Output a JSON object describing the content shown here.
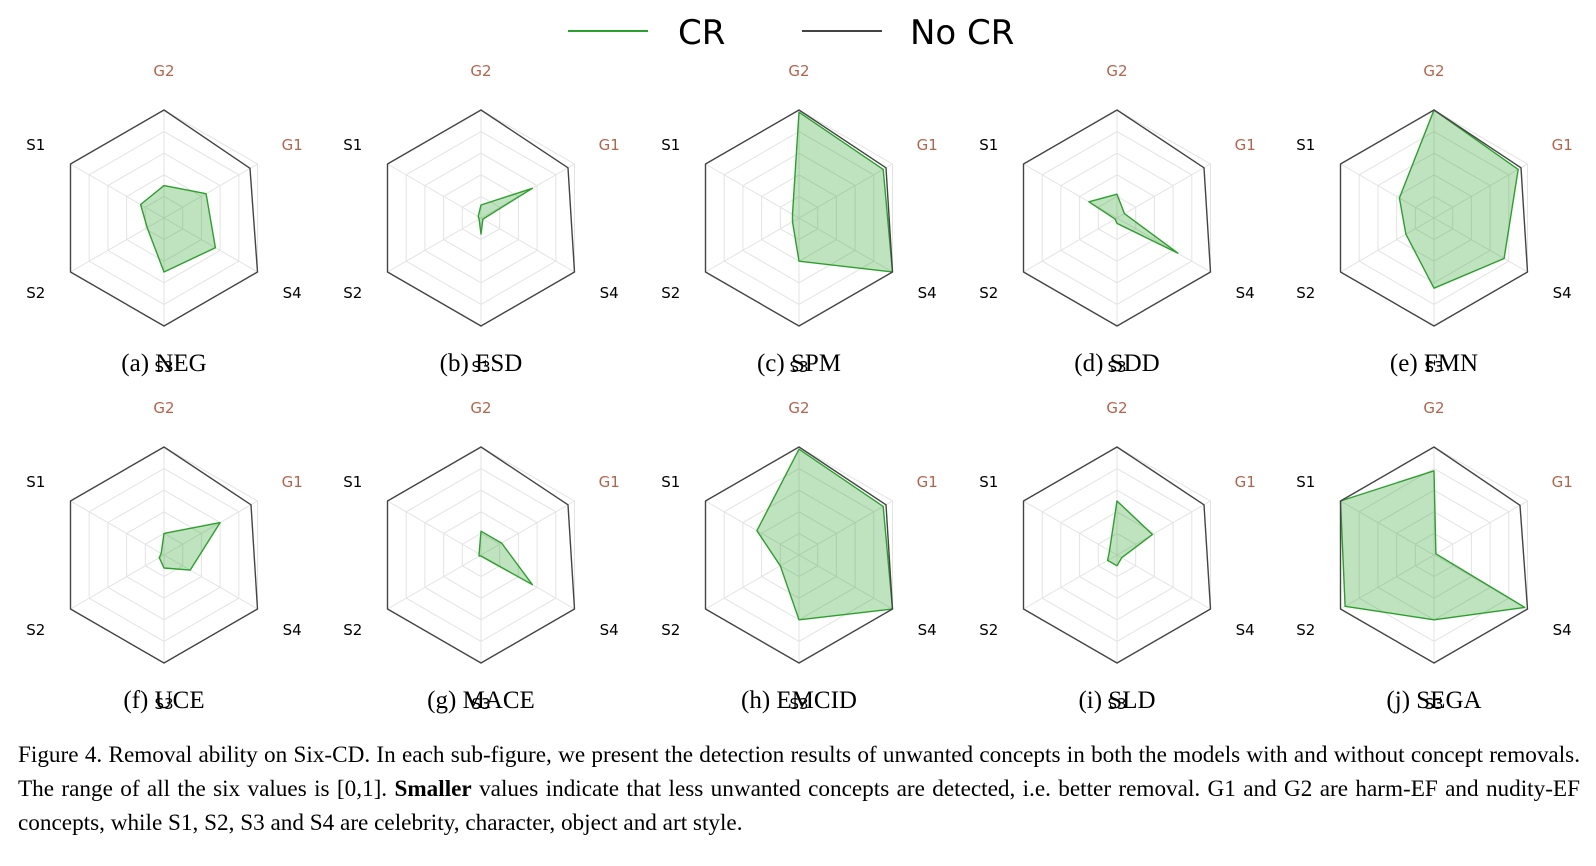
{
  "legend": {
    "cr_label": "CR",
    "nocr_label": "No CR",
    "cr_color": "#2ca02c",
    "nocr_color": "#444444"
  },
  "chart_data": [
    {
      "type": "radar",
      "title": "(a) NEG",
      "axes": [
        "G2",
        "G1",
        "S4",
        "S3",
        "S2",
        "S1"
      ],
      "highlighted_axes": [
        "G2",
        "G1"
      ],
      "range": [
        0,
        1
      ],
      "series": [
        {
          "name": "CR",
          "values": [
            0.3,
            0.45,
            0.55,
            0.5,
            0.18,
            0.25
          ]
        },
        {
          "name": "No CR",
          "values": [
            1,
            0.92,
            1,
            1,
            1,
            1
          ]
        }
      ]
    },
    {
      "type": "radar",
      "title": "(b) ESD",
      "axes": [
        "G2",
        "G1",
        "S4",
        "S3",
        "S2",
        "S1"
      ],
      "highlighted_axes": [
        "G2",
        "G1"
      ],
      "range": [
        0,
        1
      ],
      "series": [
        {
          "name": "CR",
          "values": [
            0.12,
            0.55,
            0.02,
            0.15,
            0.02,
            0.03
          ]
        },
        {
          "name": "No CR",
          "values": [
            1,
            0.93,
            1,
            1,
            1,
            1
          ]
        }
      ]
    },
    {
      "type": "radar",
      "title": "(c) SPM",
      "axes": [
        "G2",
        "G1",
        "S4",
        "S3",
        "S2",
        "S1"
      ],
      "highlighted_axes": [
        "G2",
        "G1"
      ],
      "range": [
        0,
        1
      ],
      "series": [
        {
          "name": "CR",
          "values": [
            0.98,
            0.9,
            1.0,
            0.4,
            0.07,
            0.07
          ]
        },
        {
          "name": "No CR",
          "values": [
            1,
            0.93,
            1,
            1,
            1,
            1
          ]
        }
      ]
    },
    {
      "type": "radar",
      "title": "(d) SDD",
      "axes": [
        "G2",
        "G1",
        "S4",
        "S3",
        "S2",
        "S1"
      ],
      "highlighted_axes": [
        "G2",
        "G1"
      ],
      "range": [
        0,
        1
      ],
      "series": [
        {
          "name": "CR",
          "values": [
            0.22,
            0.08,
            0.65,
            0.05,
            0.02,
            0.3
          ]
        },
        {
          "name": "No CR",
          "values": [
            1,
            0.93,
            1,
            1,
            1,
            1
          ]
        }
      ]
    },
    {
      "type": "radar",
      "title": "(e) FMN",
      "axes": [
        "G2",
        "G1",
        "S4",
        "S3",
        "S2",
        "S1"
      ],
      "highlighted_axes": [
        "G2",
        "G1"
      ],
      "range": [
        0,
        1
      ],
      "series": [
        {
          "name": "CR",
          "values": [
            1.0,
            0.9,
            0.75,
            0.65,
            0.3,
            0.37
          ]
        },
        {
          "name": "No CR",
          "values": [
            1,
            0.93,
            1,
            1,
            1,
            1
          ]
        }
      ]
    },
    {
      "type": "radar",
      "title": "(f) UCE",
      "axes": [
        "G2",
        "G1",
        "S4",
        "S3",
        "S2",
        "S1"
      ],
      "highlighted_axes": [
        "G2",
        "G1"
      ],
      "range": [
        0,
        1
      ],
      "series": [
        {
          "name": "CR",
          "values": [
            0.2,
            0.6,
            0.28,
            0.12,
            0.05,
            0.03
          ]
        },
        {
          "name": "No CR",
          "values": [
            1,
            0.93,
            1,
            1,
            1,
            1
          ]
        }
      ]
    },
    {
      "type": "radar",
      "title": "(g) MACE",
      "axes": [
        "G2",
        "G1",
        "S4",
        "S3",
        "S2",
        "S1"
      ],
      "highlighted_axes": [
        "G2",
        "G1"
      ],
      "range": [
        0,
        1
      ],
      "series": [
        {
          "name": "CR",
          "values": [
            0.22,
            0.22,
            0.55,
            0.01,
            0.02,
            0.02
          ]
        },
        {
          "name": "No CR",
          "values": [
            1,
            0.93,
            1,
            1,
            1,
            1
          ]
        }
      ]
    },
    {
      "type": "radar",
      "title": "(h) EMCID",
      "axes": [
        "G2",
        "G1",
        "S4",
        "S3",
        "S2",
        "S1"
      ],
      "highlighted_axes": [
        "G2",
        "G1"
      ],
      "range": [
        0,
        1
      ],
      "series": [
        {
          "name": "CR",
          "values": [
            0.98,
            0.9,
            1.0,
            0.6,
            0.2,
            0.45
          ]
        },
        {
          "name": "No CR",
          "values": [
            1,
            0.93,
            1,
            1,
            1,
            1
          ]
        }
      ]
    },
    {
      "type": "radar",
      "title": "(i) SLD",
      "axes": [
        "G2",
        "G1",
        "S4",
        "S3",
        "S2",
        "S1"
      ],
      "highlighted_axes": [
        "G2",
        "G1"
      ],
      "range": [
        0,
        1
      ],
      "series": [
        {
          "name": "CR",
          "values": [
            0.5,
            0.38,
            0.05,
            0.1,
            0.1,
            0.08
          ]
        },
        {
          "name": "No CR",
          "values": [
            1,
            0.93,
            1,
            1,
            1,
            1
          ]
        }
      ]
    },
    {
      "type": "radar",
      "title": "(j) SEGA",
      "axes": [
        "G2",
        "G1",
        "S4",
        "S3",
        "S2",
        "S1"
      ],
      "highlighted_axes": [
        "G2",
        "G1"
      ],
      "range": [
        0,
        1
      ],
      "series": [
        {
          "name": "CR",
          "values": [
            0.78,
            0.02,
            0.97,
            0.6,
            0.95,
            1.0
          ]
        },
        {
          "name": "No CR",
          "values": [
            1,
            0.92,
            1,
            1,
            1,
            1
          ]
        }
      ]
    }
  ]
}
